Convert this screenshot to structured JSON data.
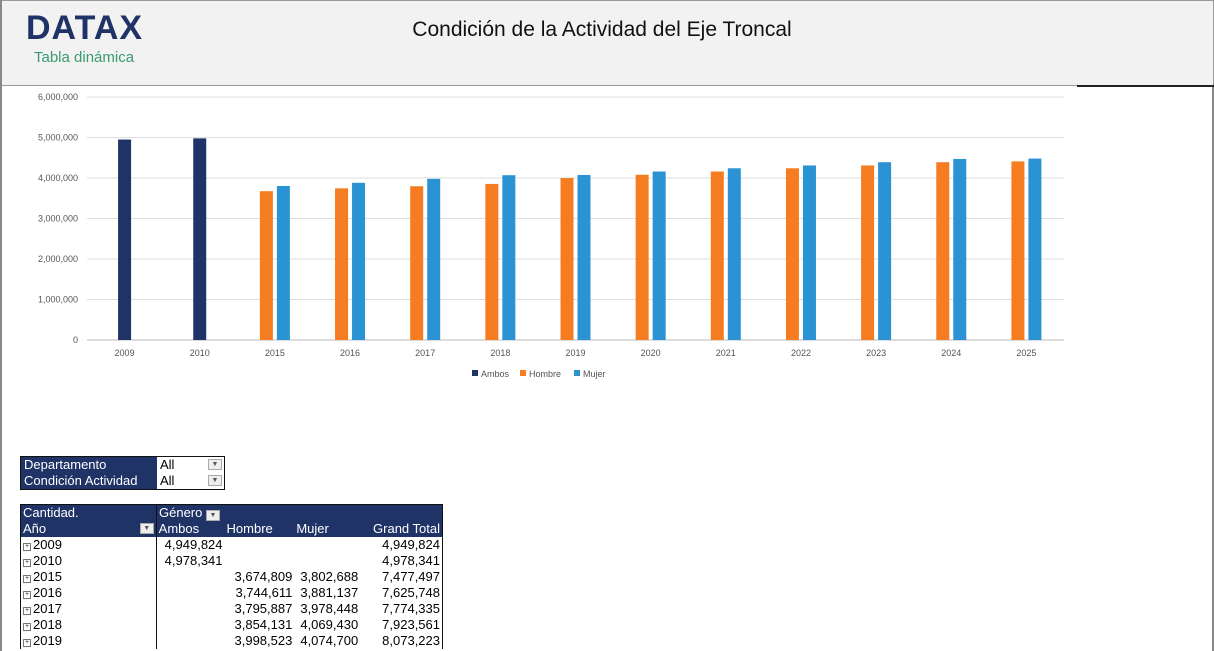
{
  "header": {
    "logo": "DATAX",
    "subtitle": "Tabla dinámica",
    "title": "Condición de la Actividad del Eje Troncal"
  },
  "colors": {
    "Ambos": "#1f3366",
    "Hombre": "#f57c20",
    "Mujer": "#2b93d3",
    "header_bg": "#1f3366"
  },
  "chart_data": {
    "type": "bar",
    "categories": [
      "2009",
      "2010",
      "2015",
      "2016",
      "2017",
      "2018",
      "2019",
      "2020",
      "2021",
      "2022",
      "2023",
      "2024",
      "2025"
    ],
    "series": [
      {
        "name": "Ambos",
        "values": [
          4949824,
          4978341,
          null,
          null,
          null,
          null,
          null,
          null,
          null,
          null,
          null,
          null,
          null
        ]
      },
      {
        "name": "Hombre",
        "values": [
          null,
          null,
          3674809,
          3744611,
          3795887,
          3854131,
          3998523,
          4080000,
          4160000,
          4240000,
          4310000,
          4390000,
          4410000
        ]
      },
      {
        "name": "Mujer",
        "values": [
          null,
          null,
          3802688,
          3881137,
          3978448,
          4069430,
          4074700,
          4160000,
          4240000,
          4310000,
          4390000,
          4470000,
          4480000
        ]
      }
    ],
    "yticks": [
      "0",
      "1,000,000",
      "2,000,000",
      "3,000,000",
      "4,000,000",
      "5,000,000",
      "6,000,000"
    ],
    "ylim": [
      0,
      6000000
    ],
    "grid": true,
    "legend": "bottom"
  },
  "filters": [
    {
      "label": "Departamento",
      "value": "All"
    },
    {
      "label": "Condición Actividad",
      "value": "All"
    }
  ],
  "pivot": {
    "measure": "Cantidad.",
    "col_field": "Género",
    "row_field": "Año",
    "columns": [
      "Ambos",
      "Hombre",
      "Mujer",
      "Grand Total"
    ],
    "rows": [
      {
        "year": "2009",
        "values": [
          "4,949,824",
          "",
          "",
          "4,949,824"
        ]
      },
      {
        "year": "2010",
        "values": [
          "4,978,341",
          "",
          "",
          "4,978,341"
        ]
      },
      {
        "year": "2015",
        "values": [
          "",
          "3,674,809",
          "3,802,688",
          "7,477,497"
        ]
      },
      {
        "year": "2016",
        "values": [
          "",
          "3,744,611",
          "3,881,137",
          "7,625,748"
        ]
      },
      {
        "year": "2017",
        "values": [
          "",
          "3,795,887",
          "3,978,448",
          "7,774,335"
        ]
      },
      {
        "year": "2018",
        "values": [
          "",
          "3,854,131",
          "4,069,430",
          "7,923,561"
        ]
      },
      {
        "year": "2019",
        "values": [
          "",
          "3,998,523",
          "4,074,700",
          "8,073,223"
        ]
      }
    ]
  }
}
